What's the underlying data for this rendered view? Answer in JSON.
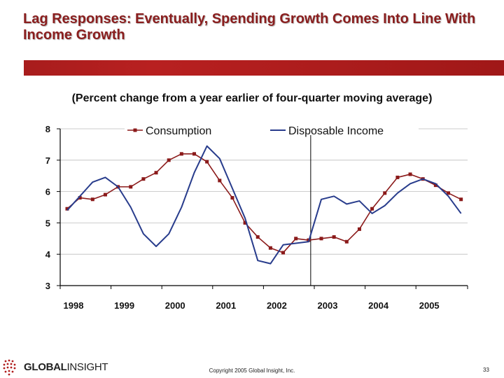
{
  "slide": {
    "title": "Lag Responses: Eventually, Spending Growth Comes Into Line With Income Growth",
    "subtitle": "(Percent change from a year earlier of four-quarter moving average)",
    "logo_bold": "GLOBAL",
    "logo_light": "INSIGHT",
    "copyright": "Copyright 2005 Global Insight, Inc.",
    "page_number": "33"
  },
  "colors": {
    "title": "#8a1e1e",
    "rule": "#a51c1c",
    "consumption": "#8b1a1a",
    "income": "#283c8c"
  },
  "chart_data": {
    "type": "line",
    "title": "",
    "xlabel": "",
    "ylabel": "",
    "ylim": [
      3,
      8
    ],
    "yticks": [
      3,
      4,
      5,
      6,
      7,
      8
    ],
    "xticks": [
      "1998",
      "1999",
      "2000",
      "2001",
      "2002",
      "2003",
      "2004",
      "2005"
    ],
    "x": [
      "1998Q1",
      "1998Q2",
      "1998Q3",
      "1998Q4",
      "1999Q1",
      "1999Q2",
      "1999Q3",
      "1999Q4",
      "2000Q1",
      "2000Q2",
      "2000Q3",
      "2000Q4",
      "2001Q1",
      "2001Q2",
      "2001Q3",
      "2001Q4",
      "2002Q1",
      "2002Q2",
      "2002Q3",
      "2002Q4",
      "2003Q1",
      "2003Q2",
      "2003Q3",
      "2003Q4",
      "2004Q1",
      "2004Q2",
      "2004Q3",
      "2004Q4",
      "2005Q1",
      "2005Q2",
      "2005Q3",
      "2005Q4"
    ],
    "series": [
      {
        "name": "Consumption",
        "marker": "square",
        "values": [
          5.45,
          5.8,
          5.75,
          5.9,
          6.15,
          6.15,
          6.4,
          6.6,
          7.0,
          7.2,
          7.2,
          6.95,
          6.35,
          5.8,
          5.0,
          4.55,
          4.2,
          4.05,
          4.5,
          4.45,
          4.5,
          4.55,
          4.4,
          4.8,
          5.45,
          5.95,
          6.45,
          6.55,
          6.4,
          6.2,
          5.95,
          5.75
        ]
      },
      {
        "name": "Disposable Income",
        "marker": "none",
        "values": [
          5.4,
          5.85,
          6.3,
          6.45,
          6.15,
          5.5,
          4.65,
          4.25,
          4.65,
          5.5,
          6.6,
          7.45,
          7.05,
          6.1,
          5.15,
          3.8,
          3.7,
          4.3,
          4.35,
          4.4,
          5.75,
          5.85,
          5.6,
          5.7,
          5.3,
          5.55,
          5.95,
          6.25,
          6.4,
          6.25,
          5.85,
          5.3
        ]
      }
    ],
    "annotations": [
      "vertical reference line at 2002Q4"
    ],
    "grid": true,
    "legend_position": "top"
  }
}
